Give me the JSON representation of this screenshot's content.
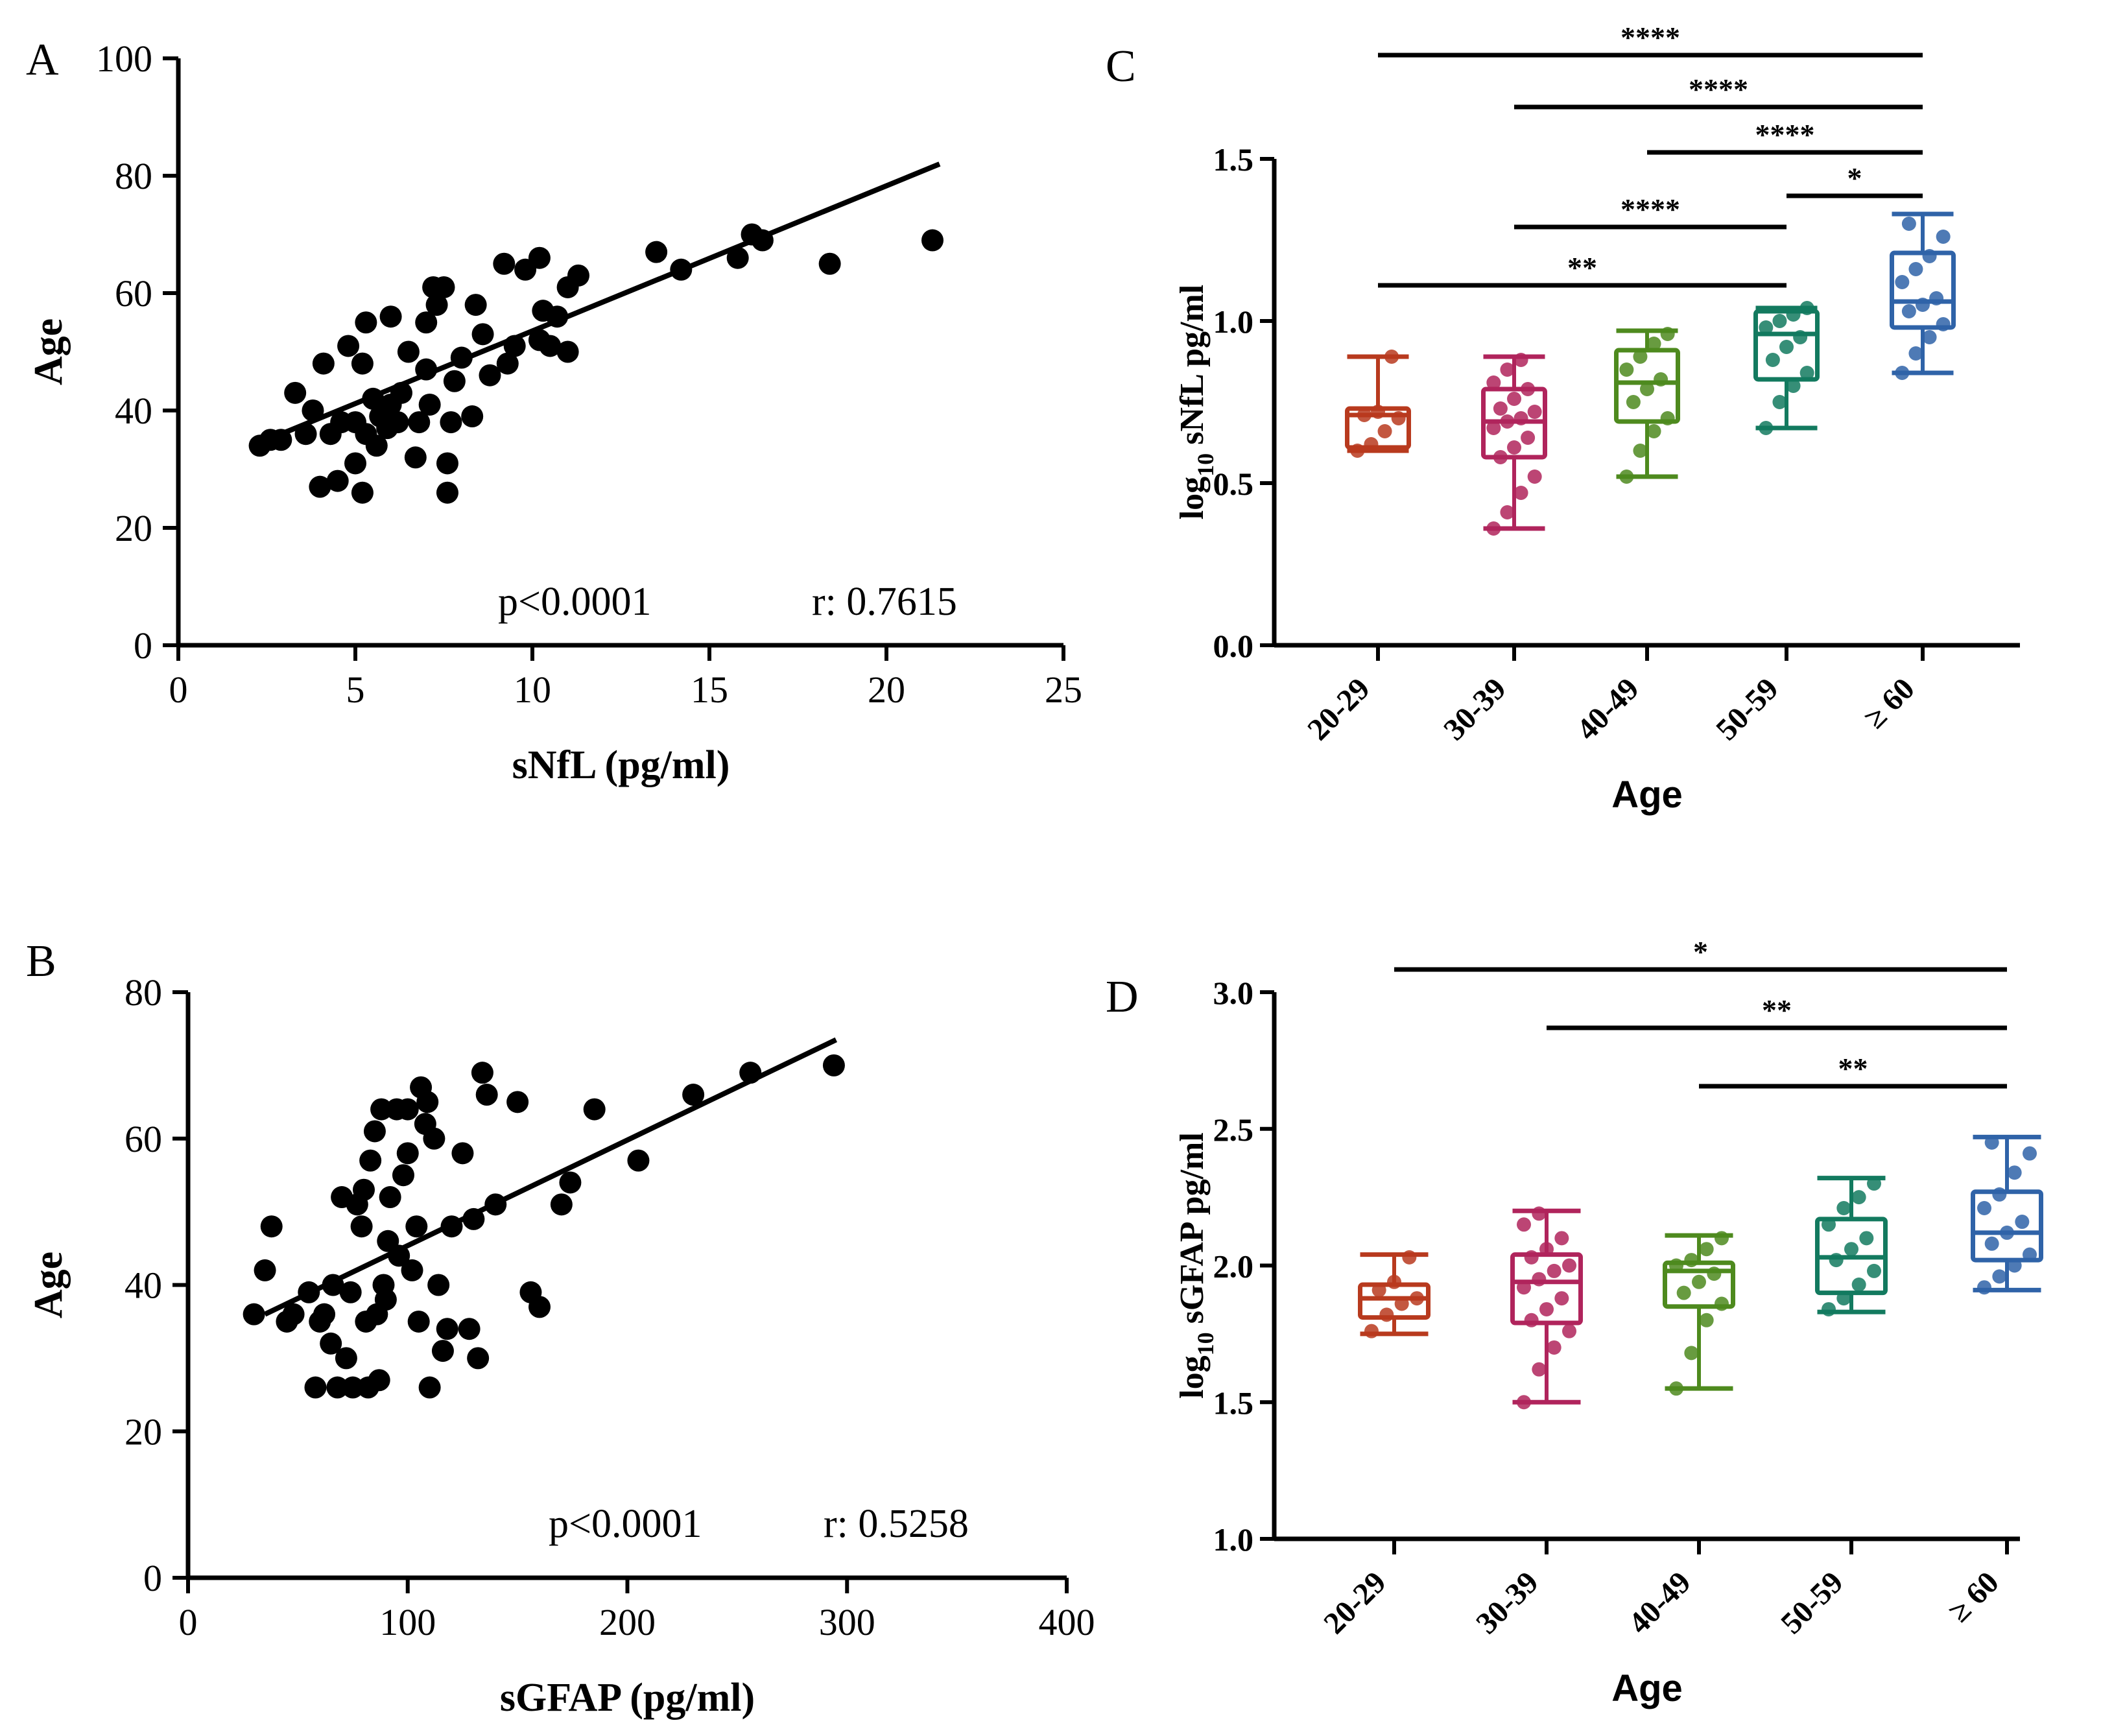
{
  "panels": {
    "A": {
      "letter": "A",
      "annotation_p": "p<0.0001",
      "annotation_r": "r: 0.7615"
    },
    "B": {
      "letter": "B",
      "annotation_p": "p<0.0001",
      "annotation_r": "r: 0.5258"
    },
    "C": {
      "letter": "C",
      "log_sub": "10"
    },
    "D": {
      "letter": "D",
      "log_sub": "10"
    }
  },
  "chart_data": [
    {
      "id": "A",
      "type": "scatter",
      "title": "",
      "xlabel": "sNfL (pg/ml)",
      "ylabel": "Age",
      "xlim": [
        0,
        25
      ],
      "ylim": [
        0,
        100
      ],
      "xticks": [
        0,
        5,
        10,
        15,
        20,
        25
      ],
      "yticks": [
        0,
        20,
        40,
        60,
        80,
        100
      ],
      "regression": {
        "x": [
          2.5,
          21.5
        ],
        "y": [
          35,
          82
        ]
      },
      "points": [
        [
          2.3,
          34
        ],
        [
          2.6,
          35
        ],
        [
          2.9,
          35
        ],
        [
          3.3,
          43
        ],
        [
          3.6,
          36
        ],
        [
          3.8,
          40
        ],
        [
          4,
          27
        ],
        [
          4.1,
          48
        ],
        [
          4.3,
          36
        ],
        [
          4.5,
          28
        ],
        [
          4.6,
          38
        ],
        [
          4.8,
          51
        ],
        [
          5,
          31
        ],
        [
          5,
          38
        ],
        [
          5.2,
          26
        ],
        [
          5.2,
          48
        ],
        [
          5.3,
          55
        ],
        [
          5.3,
          36
        ],
        [
          5.5,
          42
        ],
        [
          5.6,
          34
        ],
        [
          5.7,
          39
        ],
        [
          5.9,
          37
        ],
        [
          6,
          56
        ],
        [
          6,
          41
        ],
        [
          6.2,
          38
        ],
        [
          6.3,
          43
        ],
        [
          6.5,
          50
        ],
        [
          6.7,
          32
        ],
        [
          6.8,
          38
        ],
        [
          7,
          55
        ],
        [
          7,
          47
        ],
        [
          7.1,
          41
        ],
        [
          7.2,
          61
        ],
        [
          7.3,
          58
        ],
        [
          7.5,
          61
        ],
        [
          7.6,
          26
        ],
        [
          7.6,
          31
        ],
        [
          7.7,
          38
        ],
        [
          7.8,
          45
        ],
        [
          8,
          49
        ],
        [
          8.3,
          39
        ],
        [
          8.4,
          58
        ],
        [
          8.6,
          53
        ],
        [
          8.8,
          46
        ],
        [
          9.2,
          65
        ],
        [
          9.3,
          48
        ],
        [
          9.5,
          51
        ],
        [
          9.8,
          64
        ],
        [
          10.2,
          66
        ],
        [
          10.2,
          52
        ],
        [
          10.3,
          57
        ],
        [
          10.5,
          51
        ],
        [
          10.7,
          56
        ],
        [
          11,
          61
        ],
        [
          11,
          50
        ],
        [
          11.3,
          63
        ],
        [
          13.5,
          67
        ],
        [
          14.2,
          64
        ],
        [
          15.8,
          66
        ],
        [
          16.2,
          70
        ],
        [
          16.5,
          69
        ],
        [
          18.4,
          65
        ],
        [
          21.3,
          69
        ]
      ]
    },
    {
      "id": "B",
      "type": "scatter",
      "title": "",
      "xlabel": "sGFAP (pg/ml)",
      "ylabel": "Age",
      "xlim": [
        0,
        400
      ],
      "ylim": [
        0,
        80
      ],
      "xticks": [
        0,
        100,
        200,
        300,
        400
      ],
      "yticks": [
        0,
        20,
        40,
        60,
        80
      ],
      "regression": {
        "x": [
          35,
          295
        ],
        "y": [
          36,
          73.5
        ]
      },
      "points": [
        [
          30,
          36
        ],
        [
          35,
          42
        ],
        [
          38,
          48
        ],
        [
          45,
          35
        ],
        [
          48,
          36
        ],
        [
          55,
          39
        ],
        [
          58,
          26
        ],
        [
          60,
          35
        ],
        [
          62,
          36
        ],
        [
          65,
          32
        ],
        [
          66,
          40
        ],
        [
          68,
          26
        ],
        [
          70,
          52
        ],
        [
          72,
          30
        ],
        [
          74,
          39
        ],
        [
          75,
          26
        ],
        [
          77,
          51
        ],
        [
          79,
          48
        ],
        [
          80,
          53
        ],
        [
          81,
          35
        ],
        [
          82,
          26
        ],
        [
          83,
          57
        ],
        [
          85,
          61
        ],
        [
          86,
          36
        ],
        [
          87,
          27
        ],
        [
          88,
          64
        ],
        [
          89,
          40
        ],
        [
          90,
          38
        ],
        [
          91,
          46
        ],
        [
          92,
          52
        ],
        [
          95,
          64
        ],
        [
          96,
          44
        ],
        [
          98,
          55
        ],
        [
          100,
          64
        ],
        [
          100,
          58
        ],
        [
          102,
          42
        ],
        [
          104,
          48
        ],
        [
          105,
          35
        ],
        [
          106,
          67
        ],
        [
          108,
          62
        ],
        [
          109,
          65
        ],
        [
          110,
          26
        ],
        [
          112,
          60
        ],
        [
          114,
          40
        ],
        [
          116,
          31
        ],
        [
          118,
          34
        ],
        [
          120,
          48
        ],
        [
          125,
          58
        ],
        [
          128,
          34
        ],
        [
          130,
          49
        ],
        [
          132,
          30
        ],
        [
          134,
          69
        ],
        [
          136,
          66
        ],
        [
          140,
          51
        ],
        [
          150,
          65
        ],
        [
          156,
          39
        ],
        [
          160,
          37
        ],
        [
          170,
          51
        ],
        [
          174,
          54
        ],
        [
          185,
          64
        ],
        [
          205,
          57
        ],
        [
          230,
          66
        ],
        [
          256,
          69
        ],
        [
          294,
          70
        ]
      ]
    },
    {
      "id": "C",
      "type": "box",
      "title": "",
      "xlabel": "Age",
      "ylabel_prefix": "log",
      "ylabel_suffix": " sNfL pg/ml",
      "ylim": [
        0,
        1.5
      ],
      "yticks": [
        "0.0",
        "0.5",
        "1.0",
        "1.5"
      ],
      "categories": [
        "20-29",
        "30-39",
        "40-49",
        "50-59",
        "≥ 60"
      ],
      "boxes": [
        {
          "min": 0.6,
          "q1": 0.61,
          "median": 0.71,
          "q3": 0.73,
          "max": 0.89,
          "color": "#B83A1E",
          "points": [
            0.6,
            0.62,
            0.66,
            0.7,
            0.71,
            0.72,
            0.89
          ]
        },
        {
          "min": 0.36,
          "q1": 0.58,
          "median": 0.69,
          "q3": 0.79,
          "max": 0.89,
          "color": "#B0245C",
          "points": [
            0.36,
            0.41,
            0.47,
            0.52,
            0.58,
            0.61,
            0.64,
            0.67,
            0.69,
            0.7,
            0.72,
            0.73,
            0.76,
            0.79,
            0.81,
            0.85,
            0.88
          ]
        },
        {
          "min": 0.52,
          "q1": 0.69,
          "median": 0.81,
          "q3": 0.91,
          "max": 0.97,
          "color": "#4E8A1E",
          "points": [
            0.52,
            0.6,
            0.66,
            0.7,
            0.75,
            0.79,
            0.82,
            0.85,
            0.89,
            0.93,
            0.96
          ]
        },
        {
          "min": 0.67,
          "q1": 0.82,
          "median": 0.96,
          "q3": 1.03,
          "max": 1.04,
          "color": "#137A5F",
          "points": [
            0.67,
            0.75,
            0.8,
            0.84,
            0.88,
            0.92,
            0.95,
            0.98,
            1.0,
            1.02,
            1.04
          ]
        },
        {
          "min": 0.84,
          "q1": 0.98,
          "median": 1.06,
          "q3": 1.21,
          "max": 1.33,
          "color": "#2F63A8",
          "points": [
            0.84,
            0.9,
            0.95,
            0.99,
            1.03,
            1.05,
            1.07,
            1.12,
            1.16,
            1.2,
            1.26,
            1.3
          ]
        }
      ],
      "significance": [
        {
          "from": 0,
          "to": 4,
          "label": "****",
          "level": 1.66
        },
        {
          "from": 1,
          "to": 4,
          "label": "****",
          "level": 1.66
        },
        {
          "from": 2,
          "to": 4,
          "label": "****",
          "level": 1.66
        },
        {
          "from": 3,
          "to": 4,
          "label": "*",
          "level": 1.66
        },
        {
          "from": 1,
          "to": 3,
          "label": "****",
          "level": 1.66
        },
        {
          "from": 0,
          "to": 3,
          "label": "**",
          "level": 1.66
        }
      ]
    },
    {
      "id": "D",
      "type": "box",
      "title": "",
      "xlabel": "Age",
      "ylabel_prefix": "log",
      "ylabel_suffix": " sGFAP pg/ml",
      "ylim": [
        1.0,
        3.0
      ],
      "yticks": [
        "1.0",
        "1.5",
        "2.0",
        "2.5",
        "3.0"
      ],
      "categories": [
        "20-29",
        "30-39",
        "40-49",
        "50-59",
        "≥ 60"
      ],
      "boxes": [
        {
          "min": 1.75,
          "q1": 1.81,
          "median": 1.88,
          "q3": 1.93,
          "max": 2.04,
          "color": "#B83A1E",
          "points": [
            1.76,
            1.82,
            1.86,
            1.88,
            1.91,
            1.94,
            2.03
          ]
        },
        {
          "min": 1.5,
          "q1": 1.79,
          "median": 1.94,
          "q3": 2.04,
          "max": 2.2,
          "color": "#B0245C",
          "points": [
            1.5,
            1.62,
            1.7,
            1.76,
            1.8,
            1.84,
            1.88,
            1.92,
            1.95,
            1.98,
            2.0,
            2.03,
            2.06,
            2.1,
            2.15,
            2.19
          ]
        },
        {
          "min": 1.55,
          "q1": 1.85,
          "median": 1.98,
          "q3": 2.01,
          "max": 2.11,
          "color": "#4E8A1E",
          "points": [
            1.55,
            1.68,
            1.8,
            1.86,
            1.9,
            1.94,
            1.97,
            2.0,
            2.02,
            2.06,
            2.1
          ]
        },
        {
          "min": 1.83,
          "q1": 1.9,
          "median": 2.03,
          "q3": 2.17,
          "max": 2.32,
          "color": "#137A5F",
          "points": [
            1.84,
            1.88,
            1.93,
            1.98,
            2.02,
            2.06,
            2.1,
            2.15,
            2.21,
            2.25,
            2.3
          ]
        },
        {
          "min": 1.91,
          "q1": 2.02,
          "median": 2.12,
          "q3": 2.27,
          "max": 2.47,
          "color": "#2F63A8",
          "points": [
            1.92,
            1.96,
            2.0,
            2.04,
            2.08,
            2.12,
            2.16,
            2.21,
            2.26,
            2.34,
            2.41,
            2.45
          ]
        }
      ],
      "significance": [
        {
          "from": 0,
          "to": 4,
          "label": "*",
          "level": 3.0
        },
        {
          "from": 1,
          "to": 4,
          "label": "**",
          "level": 3.0
        },
        {
          "from": 2,
          "to": 4,
          "label": "**",
          "level": 3.0
        }
      ]
    }
  ]
}
